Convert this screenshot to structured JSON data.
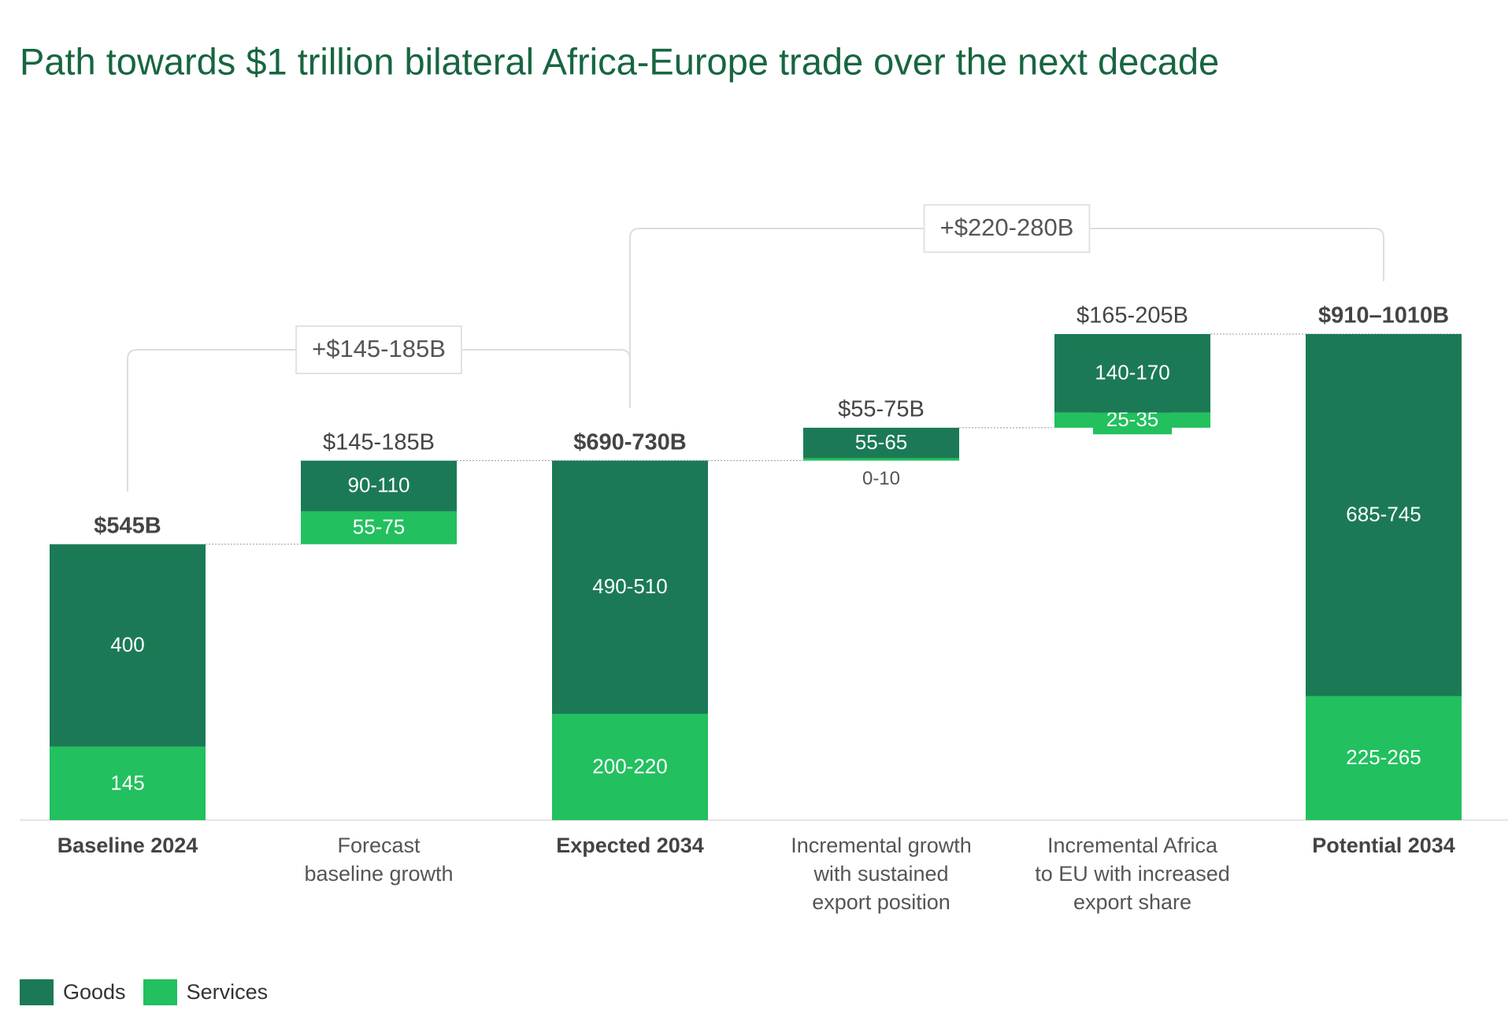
{
  "chart_data": {
    "type": "waterfall",
    "title": "Path towards $1 trillion bilateral Africa-Europe trade over the next decade",
    "categories": [
      "Baseline 2024",
      "Forecast\nbaseline growth",
      "Expected 2034",
      "Incremental growth\nwith sustained\nexport position",
      "Incremental Africa\nto EU with increased\nexport share",
      "Potential 2034"
    ],
    "measure": [
      "total",
      "relative",
      "total",
      "relative",
      "relative",
      "total"
    ],
    "total_labels": [
      "$545B",
      "$145-185B",
      "$690-730B",
      "$55-75B",
      "$165-205B",
      "$910–1010B"
    ],
    "series": [
      {
        "name": "Goods",
        "color": "#1b7a55",
        "values": [
          400,
          100,
          500,
          60,
          155,
          715
        ],
        "value_labels": [
          "400",
          "90-110",
          "490-510",
          "55-65",
          "140-170",
          "685-745"
        ]
      },
      {
        "name": "Services",
        "color": "#22c05e",
        "values": [
          145,
          65,
          210,
          5,
          30,
          245
        ],
        "value_labels": [
          "145",
          "55-75",
          "200-220",
          "0-10",
          "25-35",
          "225-265"
        ]
      }
    ],
    "brackets": [
      {
        "label": "+$145-185B",
        "from": "Baseline 2024",
        "to": "Expected 2034"
      },
      {
        "label": "+$220-280B",
        "from": "Expected 2034",
        "to": "Potential 2034"
      }
    ]
  }
}
